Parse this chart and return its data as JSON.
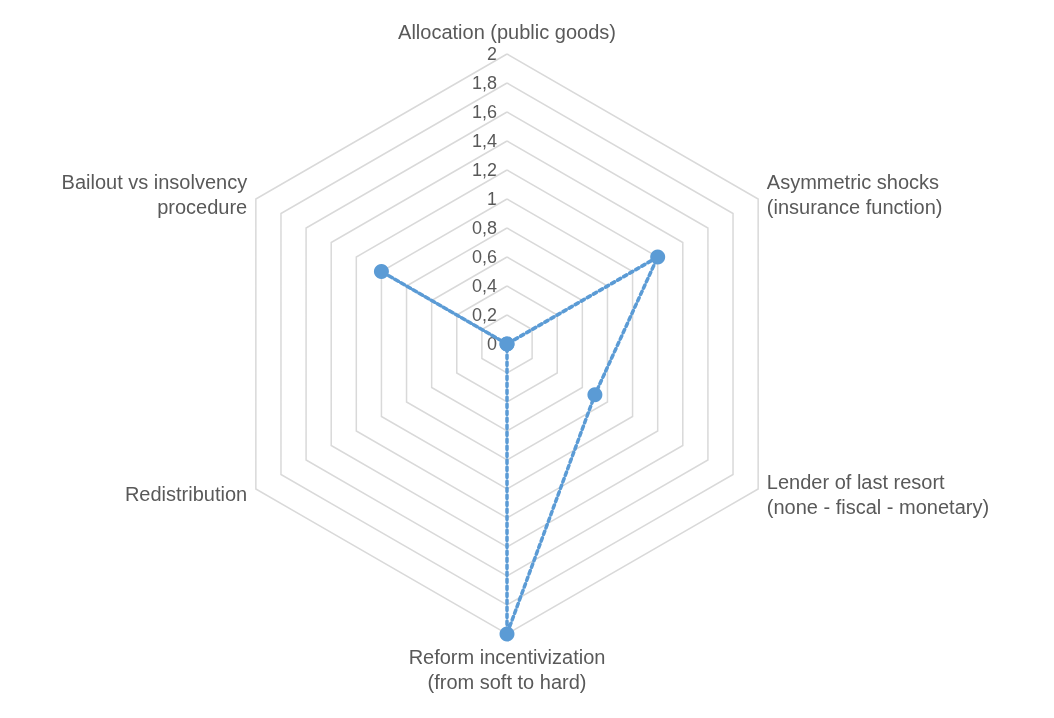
{
  "chart_data": {
    "type": "radar",
    "categories": [
      "Allocation (public goods)",
      "Asymmetric shocks\n(insurance function)",
      "Lender of last resort\n(none - fiscal - monetary)",
      "Reform incentivization\n(from soft to hard)",
      "Redistribution",
      "Bailout vs insolvency\nprocedure"
    ],
    "series": [
      {
        "color": "#5b9bd5",
        "values": [
          0,
          1.2,
          0.7,
          2,
          0,
          1
        ]
      }
    ],
    "ylim": [
      0,
      2
    ],
    "yticks": [
      0,
      {
        "value": 0.2,
        "label": "0,2"
      },
      {
        "value": 0.4,
        "label": "0,4"
      },
      {
        "value": 0.6,
        "label": "0,6"
      },
      {
        "value": 0.8,
        "label": "0,8"
      },
      1,
      {
        "value": 1.2,
        "label": "1,2"
      },
      {
        "value": 1.4,
        "label": "1,4"
      },
      {
        "value": 1.6,
        "label": "1,6"
      },
      {
        "value": 1.8,
        "label": "1,8"
      },
      2
    ],
    "marker": "circle",
    "line_style": "dotted",
    "grid": true
  }
}
